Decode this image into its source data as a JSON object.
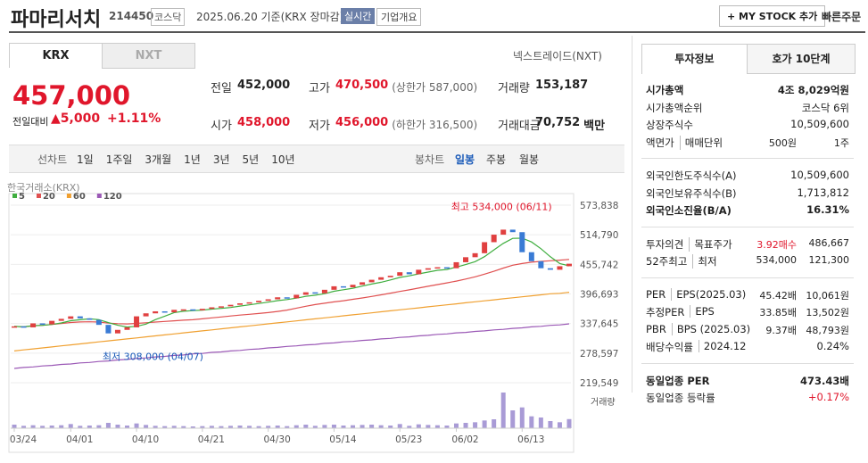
{
  "header": {
    "name": "파마리서치",
    "code": "214450",
    "market": "코스닥",
    "date": "2025.06.20 기준(KRX 장마감)",
    "badge": "실시간",
    "company_info": "기업개요",
    "mystock": "+ MY STOCK 추가",
    "quick": "빠른주문"
  },
  "tabs": [
    "KRX",
    "NXT"
  ],
  "nxt_link": "넥스트레이드(NXT)",
  "price": {
    "current": "457,000",
    "change_label": "전일대비",
    "change": "5,000",
    "change_pct": "+1.11%"
  },
  "stats": [
    {
      "label": "전일",
      "value": "452,000"
    },
    {
      "label": "고가",
      "value": "470,500",
      "sub": "(상한가 587,000)"
    },
    {
      "label": "거래량",
      "value": "153,187"
    },
    {
      "label": "시가",
      "value": "458,000"
    },
    {
      "label": "저가",
      "value": "456,000",
      "sub": "(하한가 316,500)"
    },
    {
      "label": "거래대금",
      "value": "70,752",
      "sub": "백만"
    }
  ],
  "period_bar": {
    "line_label": "선차트",
    "periods": [
      "1일",
      "1주일",
      "3개월",
      "1년",
      "3년",
      "5년",
      "10년"
    ],
    "candle_label": "봉차트",
    "candle_periods": [
      "일봉",
      "주봉",
      "월봉"
    ]
  },
  "chart_data": {
    "type": "candlestick",
    "source": "한국거래소(KRX)",
    "ma_legend": [
      {
        "name": "5",
        "color": "#3fae3f"
      },
      {
        "name": "20",
        "color": "#e05050"
      },
      {
        "name": "60",
        "color": "#f0a030"
      },
      {
        "name": "120",
        "color": "#9b59b6"
      }
    ],
    "high_annotation": "최고 534,000 (06/11)",
    "low_annotation": "최저 308,000 (04/07)",
    "volume_label": "거래량",
    "ylim": [
      219549,
      573838
    ],
    "yticks": [
      {
        "value": 573838,
        "label": "573,838"
      },
      {
        "value": 514790,
        "label": "514,790"
      },
      {
        "value": 455742,
        "label": "455,742"
      },
      {
        "value": 396693,
        "label": "396,693"
      },
      {
        "value": 337645,
        "label": "337,645"
      },
      {
        "value": 278597,
        "label": "278,597"
      },
      {
        "value": 219549,
        "label": "219,549"
      }
    ],
    "categories": [
      "03/24",
      null,
      null,
      null,
      null,
      null,
      "04/01",
      null,
      null,
      null,
      null,
      null,
      null,
      "04/10",
      null,
      null,
      null,
      null,
      null,
      null,
      "04/21",
      null,
      null,
      null,
      null,
      null,
      null,
      "04/30",
      null,
      null,
      null,
      null,
      null,
      null,
      "05/14",
      null,
      null,
      null,
      null,
      null,
      null,
      "05/23",
      null,
      null,
      null,
      null,
      null,
      "06/02",
      null,
      null,
      null,
      null,
      null,
      null,
      "06/13",
      null,
      null,
      null,
      null,
      null
    ],
    "close": [
      332000,
      330000,
      338000,
      336000,
      343000,
      347000,
      352000,
      348000,
      345000,
      335000,
      318000,
      325000,
      330000,
      352000,
      358000,
      362000,
      360000,
      365000,
      366000,
      364000,
      367000,
      370000,
      372000,
      375000,
      378000,
      380000,
      383000,
      386000,
      390000,
      388000,
      395000,
      400000,
      398000,
      405000,
      412000,
      410000,
      415000,
      420000,
      425000,
      430000,
      433000,
      440000,
      436000,
      445000,
      448000,
      450000,
      448000,
      460000,
      470000,
      478000,
      500000,
      515000,
      525000,
      520000,
      480000,
      462000,
      448000,
      445000,
      452000,
      457000
    ],
    "ma60": [
      283000,
      285000,
      287000,
      289000,
      291000,
      293000,
      295000,
      297000,
      299000,
      301000,
      303000,
      305000,
      307000,
      309000,
      311000,
      313000,
      315000,
      317000,
      319000,
      321000,
      323000,
      325000,
      327000,
      329000,
      331000,
      333000,
      335000,
      337000,
      339000,
      341000,
      343000,
      345000,
      347000,
      349000,
      351000,
      353000,
      355000,
      357000,
      359000,
      361000,
      363000,
      365000,
      367000,
      369000,
      371000,
      373000,
      375000,
      377000,
      379000,
      381000,
      383000,
      385000,
      387000,
      389000,
      391000,
      393000,
      395000,
      397000,
      398000,
      400000
    ],
    "ma120": [
      248000,
      250000,
      251000,
      253000,
      254000,
      256000,
      257000,
      259000,
      260000,
      262000,
      263000,
      265000,
      266000,
      268000,
      269000,
      271000,
      272000,
      274000,
      275000,
      277000,
      278000,
      280000,
      281000,
      283000,
      284000,
      286000,
      287000,
      289000,
      290000,
      292000,
      293000,
      295000,
      296000,
      298000,
      299000,
      301000,
      302000,
      304000,
      305000,
      307000,
      308000,
      310000,
      311000,
      313000,
      314000,
      316000,
      317000,
      319000,
      320000,
      322000,
      323000,
      325000,
      326000,
      328000,
      329000,
      331000,
      332000,
      334000,
      335000,
      337000
    ],
    "volume": [
      60000,
      40000,
      50000,
      40000,
      45000,
      50000,
      70000,
      40000,
      45000,
      50000,
      90000,
      60000,
      45000,
      80000,
      55000,
      40000,
      35000,
      40000,
      35000,
      30000,
      35000,
      40000,
      35000,
      40000,
      45000,
      40000,
      35000,
      40000,
      45000,
      35000,
      50000,
      60000,
      40000,
      55000,
      60000,
      45000,
      50000,
      55000,
      60000,
      50000,
      45000,
      70000,
      40000,
      65000,
      55000,
      50000,
      45000,
      80000,
      90000,
      100000,
      130000,
      150000,
      600000,
      300000,
      350000,
      200000,
      180000,
      120000,
      100000,
      153187
    ]
  },
  "info_tabs": [
    "투자정보",
    "호가 10단계"
  ],
  "info_groups": [
    [
      {
        "label": "시가총액",
        "value": "4조 8,029억원",
        "bold": true
      },
      {
        "label": "시가총액순위",
        "value": "코스닥 6위"
      },
      {
        "label": "상장주식수",
        "value": "10,509,600"
      },
      {
        "label": "액면가",
        "label2": "매매단위",
        "value": "500원",
        "value2": "1주"
      }
    ],
    [
      {
        "label": "외국인한도주식수(A)",
        "value": "10,509,600"
      },
      {
        "label": "외국인보유주식수(B)",
        "value": "1,713,812"
      },
      {
        "label": "외국인소진율(B/A)",
        "value": "16.31%",
        "bold": true
      }
    ],
    [
      {
        "label": "투자의견",
        "label2": "목표주가",
        "value": "3.92매수",
        "value2": "486,667",
        "red": true
      },
      {
        "label": "52주최고",
        "label2": "최저",
        "value": "534,000",
        "value2": "121,300"
      }
    ],
    [
      {
        "label": "PER",
        "label2": "EPS(2025.03)",
        "value": "45.42배",
        "value2": "10,061원"
      },
      {
        "label": "추정PER",
        "label2": "EPS",
        "value": "33.85배",
        "value2": "13,502원"
      },
      {
        "label": "PBR",
        "label2": "BPS (2025.03)",
        "value": "9.37배",
        "value2": "48,793원"
      },
      {
        "label": "배당수익률",
        "label2": "2024.12",
        "value": "0.24%"
      }
    ],
    [
      {
        "label": "동일업종 PER",
        "value": "473.43배",
        "bold": true
      },
      {
        "label": "동일업종 등락률",
        "value": "+0.17%",
        "red": true
      }
    ]
  ]
}
